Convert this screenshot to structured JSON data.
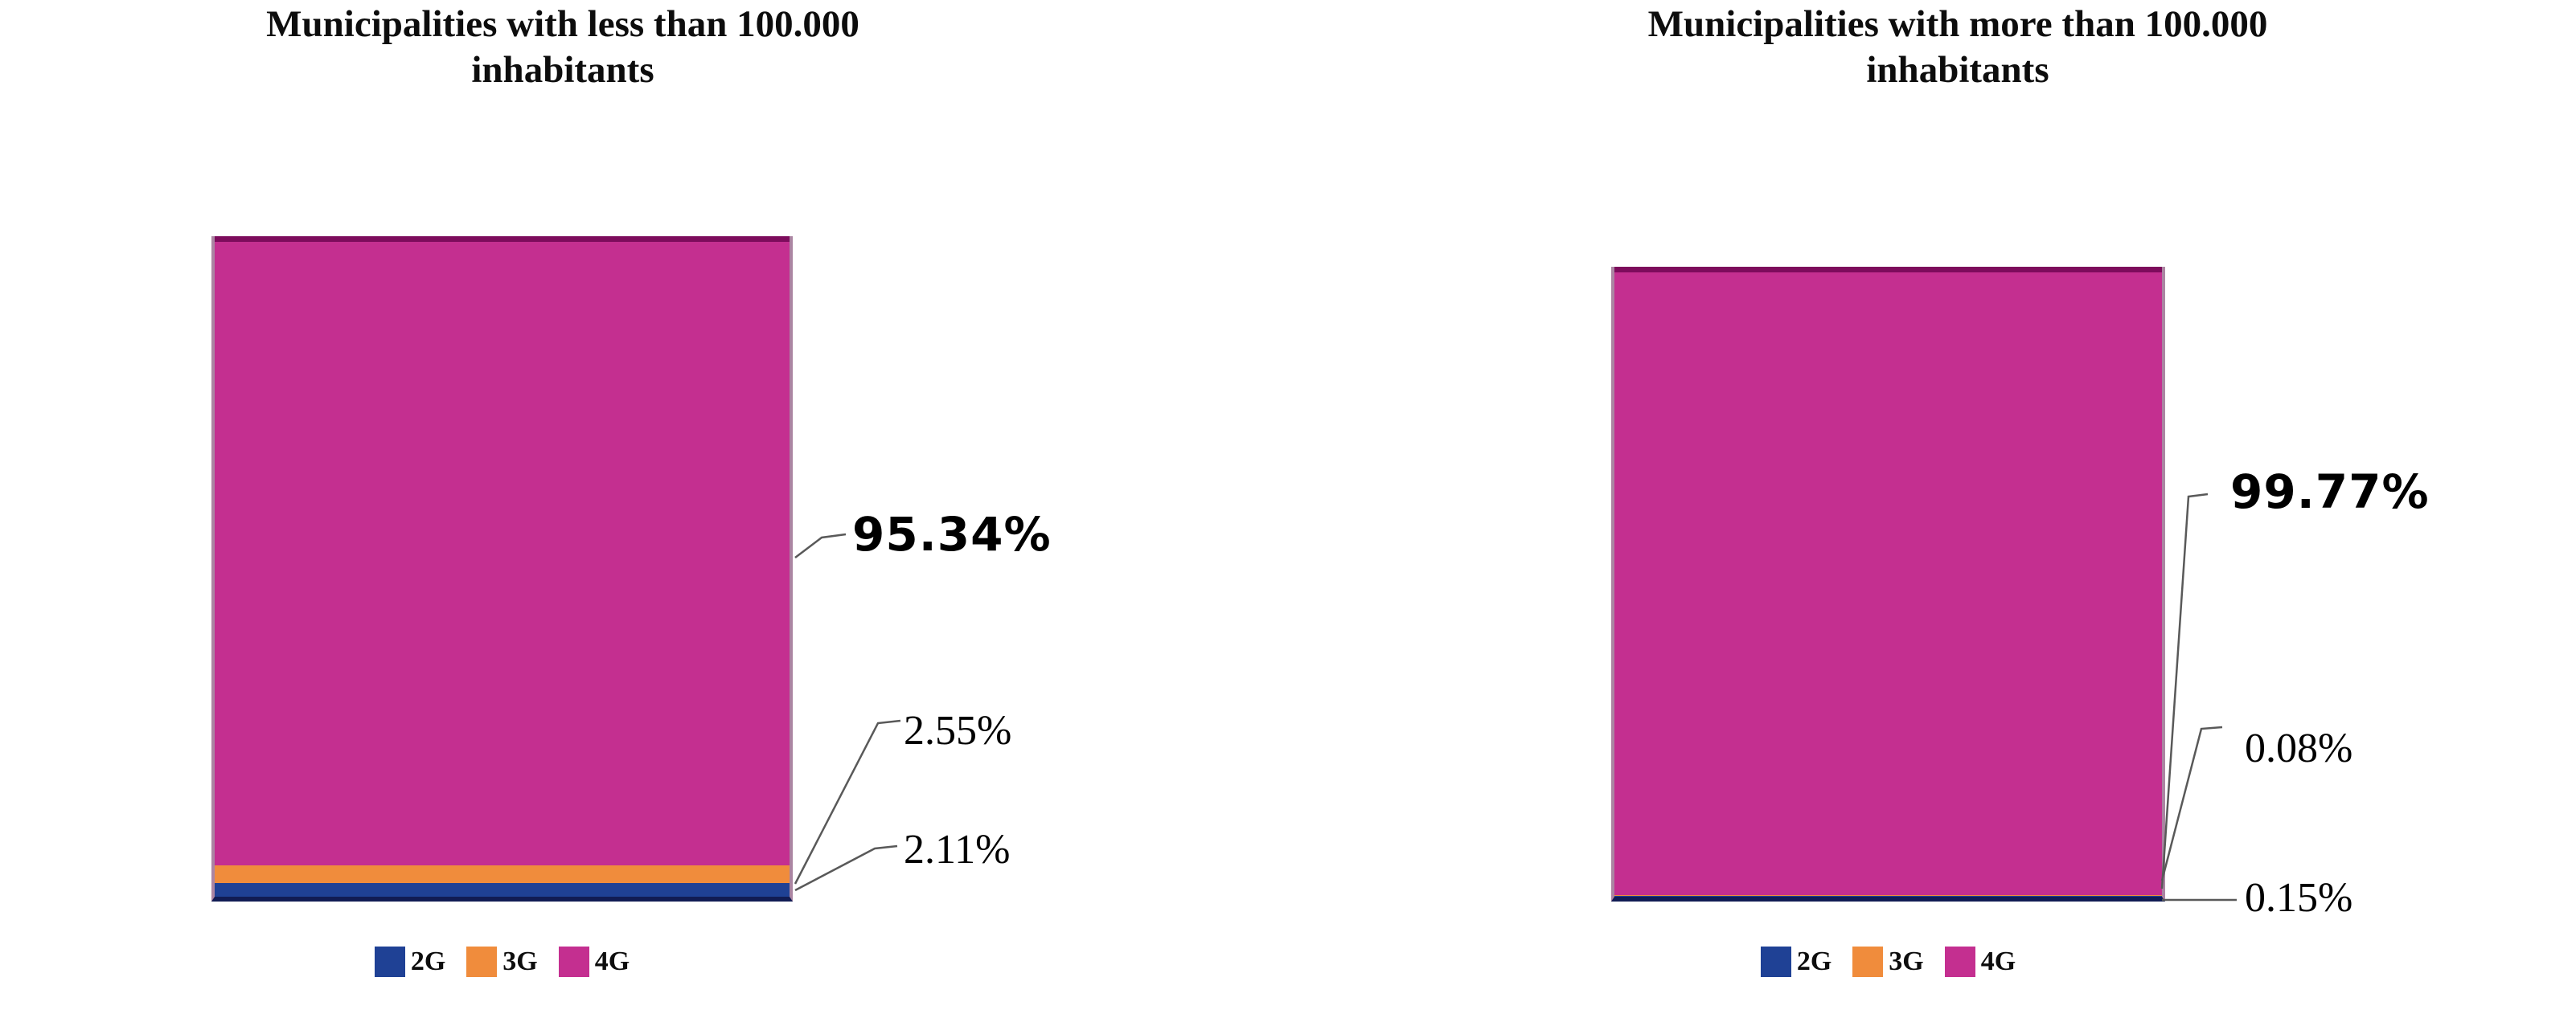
{
  "chart_data": [
    {
      "type": "bar",
      "variant": "stacked-column",
      "title": "Municipalities with less than 100.000 inhabitants",
      "title_lines": [
        "Municipalities with less than 100.000",
        "inhabitants"
      ],
      "categories": [
        "Municipalities with less than 100.000 inhabitants"
      ],
      "series": [
        {
          "name": "2G",
          "values": [
            2.11
          ],
          "label": "2.11%",
          "color": "#1F4195"
        },
        {
          "name": "3G",
          "values": [
            2.55
          ],
          "label": "2.55%",
          "color": "#F08C3C"
        },
        {
          "name": "4G",
          "values": [
            95.34
          ],
          "label": "95.34%",
          "color": "#C42F90"
        }
      ],
      "ylim": [
        0,
        100
      ],
      "grid": false,
      "axes_visible": false,
      "legend_position": "bottom",
      "legend": [
        "2G",
        "3G",
        "4G"
      ]
    },
    {
      "type": "bar",
      "variant": "stacked-column",
      "title": "Municipalities with more than 100.000 inhabitants",
      "title_lines": [
        "Municipalities with more than 100.000",
        "inhabitants"
      ],
      "categories": [
        "Municipalities with more than 100.000 inhabitants"
      ],
      "series": [
        {
          "name": "2G",
          "values": [
            0.15
          ],
          "label": "0.15%",
          "color": "#1F4195"
        },
        {
          "name": "3G",
          "values": [
            0.08
          ],
          "label": "0.08%",
          "color": "#F08C3C"
        },
        {
          "name": "4G",
          "values": [
            99.77
          ],
          "label": "99.77%",
          "color": "#C42F90"
        }
      ],
      "ylim": [
        0,
        100
      ],
      "grid": false,
      "axes_visible": false,
      "legend_position": "bottom",
      "legend": [
        "2G",
        "3G",
        "4G"
      ]
    }
  ],
  "colors": {
    "bar_top_border": "#7D0C5C",
    "bar_bottom_border": "#111C54",
    "leader_line": "#595959",
    "text": "#000000"
  }
}
